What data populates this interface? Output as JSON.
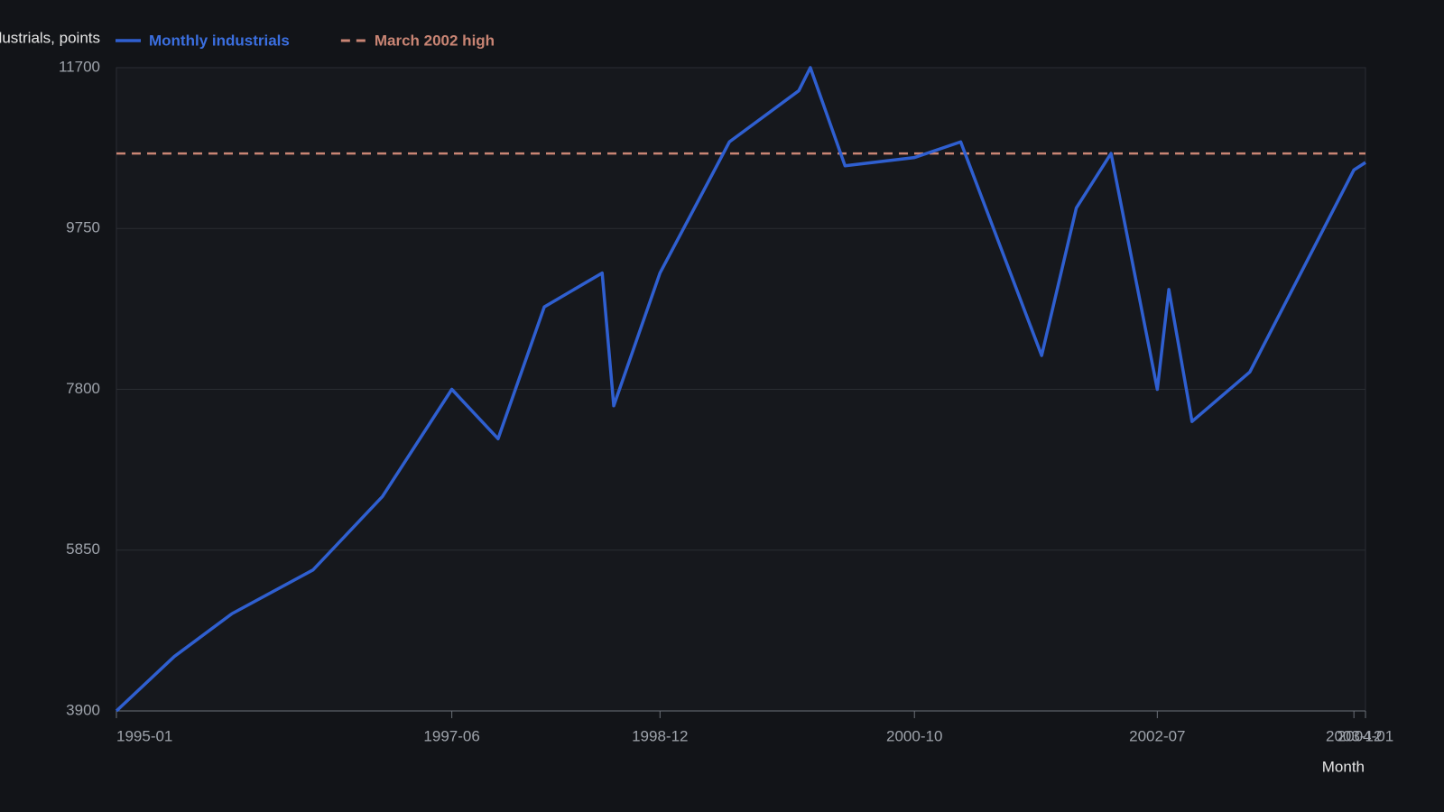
{
  "chart_data": {
    "type": "line",
    "y_label": "Industrials, points",
    "x_label": "Month",
    "x": [
      "1995-01",
      "1995-06",
      "1995-11",
      "1996-06",
      "1996-12",
      "1997-06",
      "1997-10",
      "1998-02",
      "1998-07",
      "1998-08",
      "1998-12",
      "1999-06",
      "1999-12",
      "2000-01",
      "2000-04",
      "2000-10",
      "2001-02",
      "2001-09",
      "2001-12",
      "2002-03",
      "2002-07",
      "2002-08",
      "2002-10",
      "2003-03",
      "2003-08",
      "2003-12",
      "2004-01"
    ],
    "series": [
      {
        "name": "Monthly industrials",
        "color": "#2f5fd0",
        "values": [
          3900,
          4560,
          5080,
          5610,
          6500,
          7800,
          7200,
          8800,
          9210,
          7600,
          9210,
          10800,
          11420,
          11700,
          10510,
          10610,
          10800,
          8210,
          10000,
          10660,
          7800,
          9010,
          7410,
          8010,
          9370,
          10460,
          10550
        ]
      }
    ],
    "reference_line": {
      "name": "March 2002 high",
      "value": 10660,
      "color": "#c98574"
    },
    "xlim": [
      "1995-01",
      "2004-01"
    ],
    "xticks": [
      "1995-01",
      "1997-06",
      "1998-12",
      "2000-10",
      "2002-07",
      "2003-12",
      "2004-01"
    ],
    "ylim": [
      3900,
      11700
    ],
    "yticks": [
      3900,
      5850,
      7800,
      9750,
      11700
    ],
    "grid": true
  }
}
